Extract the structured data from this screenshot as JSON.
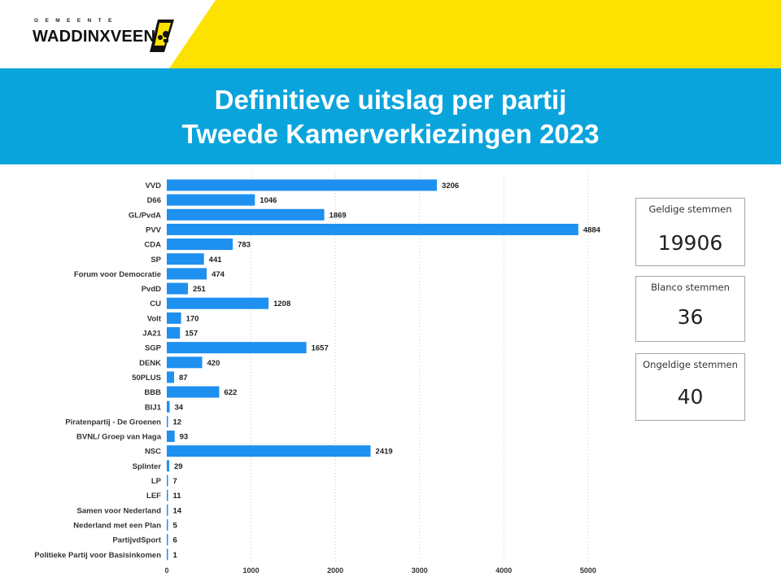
{
  "header": {
    "logo_small": "GEMEENTE",
    "logo_main": "WADDINXVEEN",
    "title_line1": "Definitieve uitslag per partij",
    "title_line2": "Tweede Kamerverkiezingen 2023"
  },
  "colors": {
    "accent_yellow": "#fde100",
    "band_blue": "#0aa4dc",
    "bar": "#1e90f0"
  },
  "cards": [
    {
      "label": "Geldige stemmen",
      "value": "19906"
    },
    {
      "label": "Blanco stemmen",
      "value": "36"
    },
    {
      "label": "Ongeldige stemmen",
      "value": "40"
    }
  ],
  "chart_data": {
    "type": "bar",
    "orientation": "horizontal",
    "categories": [
      "VVD",
      "D66",
      "GL/PvdA",
      "PVV",
      "CDA",
      "SP",
      "Forum voor Democratie",
      "PvdD",
      "CU",
      "Volt",
      "JA21",
      "SGP",
      "DENK",
      "50PLUS",
      "BBB",
      "BIJ1",
      "Piratenpartij - De Groenen",
      "BVNL/ Groep van Haga",
      "NSC",
      "Splinter",
      "LP",
      "LEF",
      "Samen voor Nederland",
      "Nederland met een Plan",
      "PartijvdSport",
      "Politieke Partij voor Basisinkomen"
    ],
    "values": [
      3206,
      1046,
      1869,
      4884,
      783,
      441,
      474,
      251,
      1208,
      170,
      157,
      1657,
      420,
      87,
      622,
      34,
      12,
      93,
      2419,
      29,
      7,
      11,
      14,
      5,
      6,
      1
    ],
    "xlim": [
      0,
      7000
    ],
    "xticks": [
      "0",
      "1000",
      "2000",
      "3000",
      "4000",
      "5000",
      "6000",
      "7000"
    ],
    "grid": true
  }
}
